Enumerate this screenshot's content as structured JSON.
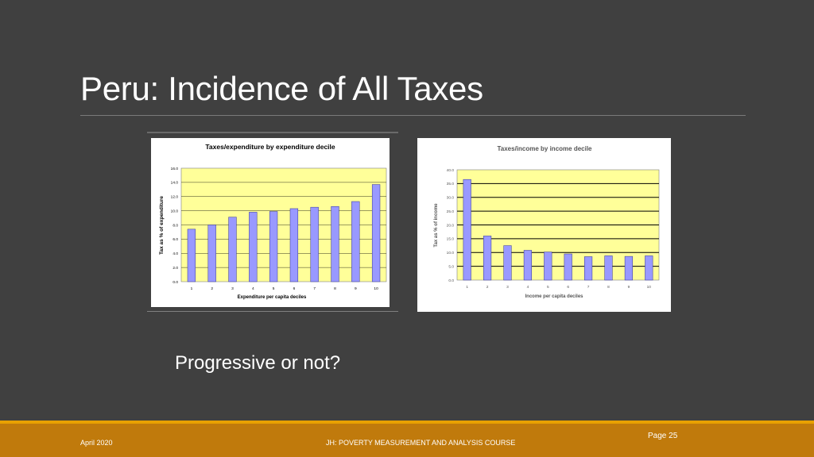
{
  "slide": {
    "title": "Peru: Incidence of All Taxes",
    "question": "Progressive or not?"
  },
  "footer": {
    "date": "April 2020",
    "course": "JH: POVERTY MEASUREMENT AND ANALYSIS COURSE",
    "page": "Page 25"
  },
  "colors": {
    "background": "#404040",
    "plot_area": "#ffff99",
    "bar": "#9999ff",
    "footer": "#c07a0c",
    "footer_accent": "#e8a000"
  },
  "chart_data": [
    {
      "type": "bar",
      "title": "Taxes/expenditure by expenditure decile",
      "xlabel": "Expenditure per capita deciles",
      "ylabel": "Tax as % of expenditure",
      "categories": [
        "1",
        "2",
        "3",
        "4",
        "5",
        "6",
        "7",
        "8",
        "9",
        "10"
      ],
      "values": [
        7.4,
        8.0,
        9.1,
        9.8,
        9.9,
        10.3,
        10.5,
        10.6,
        11.3,
        13.7
      ],
      "ylim": [
        0,
        16
      ],
      "yticks": [
        "0.0",
        "2.0",
        "4.0",
        "6.0",
        "8.0",
        "10.0",
        "12.0",
        "14.0",
        "16.0"
      ],
      "grid": true
    },
    {
      "type": "bar",
      "title": "Taxes/income by income decile",
      "xlabel": "Income per capita deciles",
      "ylabel": "Tax as % of income",
      "categories": [
        "1",
        "2",
        "3",
        "4",
        "5",
        "6",
        "7",
        "8",
        "9",
        "10"
      ],
      "values": [
        36.5,
        16.0,
        12.5,
        10.8,
        10.2,
        9.5,
        8.5,
        8.8,
        8.6,
        8.8
      ],
      "ylim": [
        0,
        40
      ],
      "yticks": [
        "0.0",
        "5.0",
        "10.0",
        "15.0",
        "20.0",
        "25.0",
        "30.0",
        "35.0",
        "40.0"
      ],
      "grid": true
    }
  ]
}
